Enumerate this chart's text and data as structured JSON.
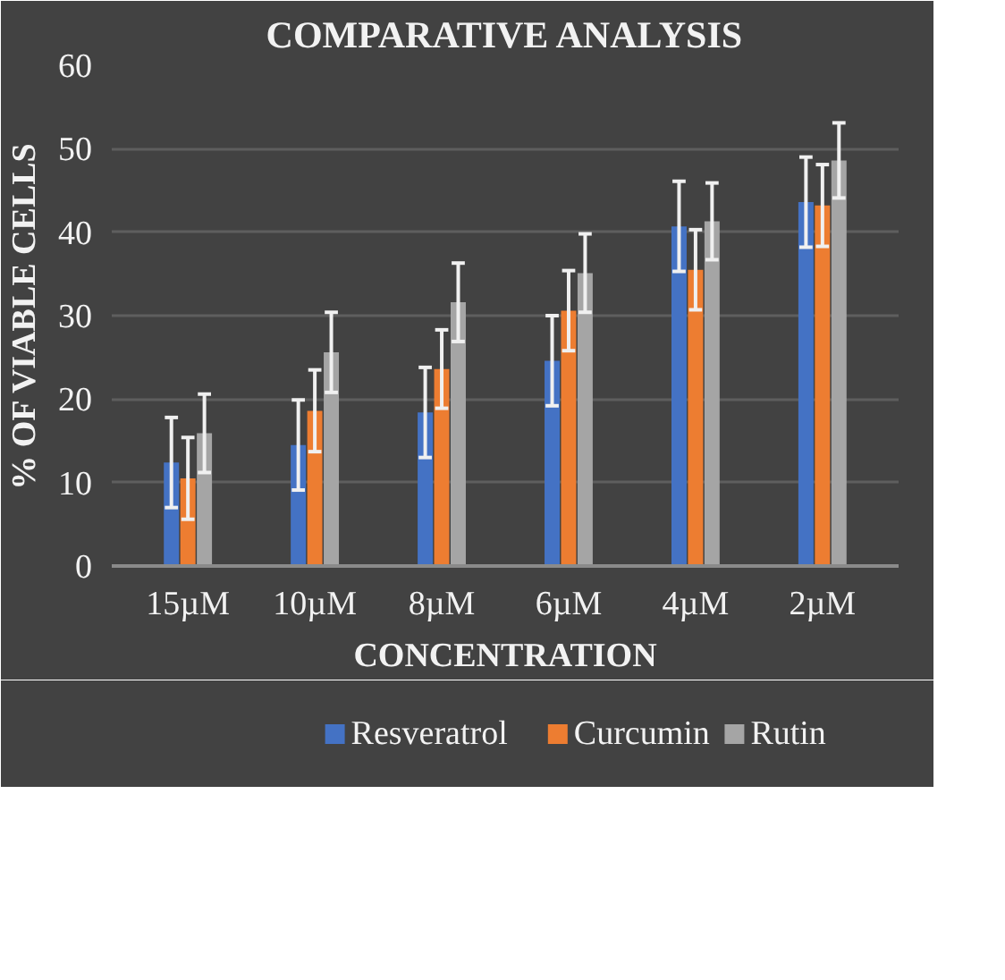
{
  "chart_data": {
    "type": "bar",
    "title": "COMPARATIVE ANALYSIS",
    "xlabel": "CONCENTRATION",
    "ylabel": "% OF VIABLE CELLS",
    "categories": [
      "15µM",
      "10µM",
      "8µM",
      "6µM",
      "4µM",
      "2µM"
    ],
    "series": [
      {
        "name": "Resveratrol",
        "color": "#4472c4",
        "values": [
          12.4,
          14.5,
          18.4,
          24.6,
          40.7,
          43.6
        ],
        "errors": [
          5.4,
          5.4,
          5.4,
          5.4,
          5.4,
          5.4
        ]
      },
      {
        "name": "Curcumin",
        "color": "#ed7d31",
        "values": [
          10.5,
          18.6,
          23.6,
          30.6,
          35.5,
          43.2
        ],
        "errors": [
          4.9,
          4.9,
          4.7,
          4.8,
          4.8,
          4.9
        ]
      },
      {
        "name": "Rutin",
        "color": "#a5a5a5",
        "values": [
          15.9,
          25.6,
          31.6,
          35.1,
          41.3,
          48.6
        ],
        "errors": [
          4.7,
          4.8,
          4.7,
          4.7,
          4.6,
          4.5
        ]
      }
    ],
    "ylim": [
      0,
      60
    ],
    "yticks": [
      0,
      10,
      20,
      30,
      40,
      50,
      60
    ],
    "grid": "y",
    "legend": "bottom"
  }
}
